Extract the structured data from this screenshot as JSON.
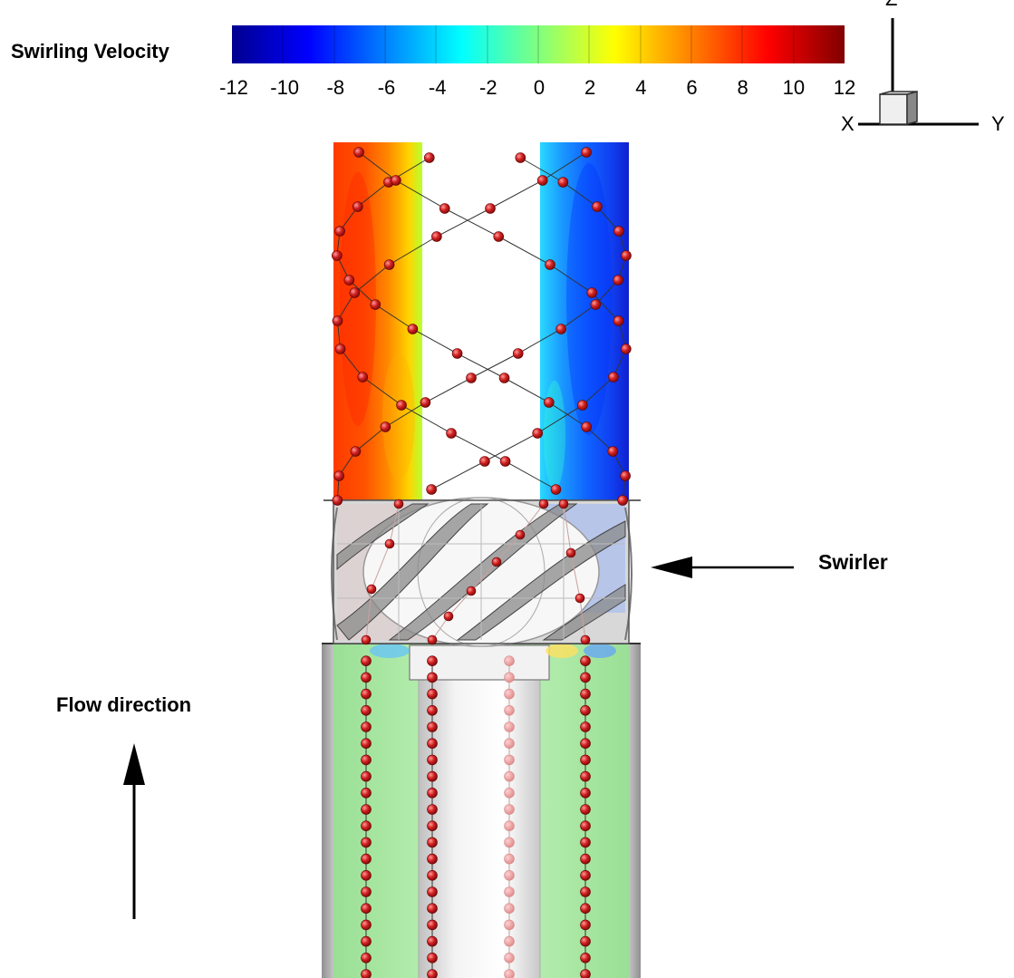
{
  "legend": {
    "title": "Swirling Velocity",
    "min": -12,
    "max": 12,
    "ticks": [
      "-12",
      "-10",
      "-8",
      "-6",
      "-4",
      "-2",
      "0",
      "2",
      "4",
      "6",
      "8",
      "10",
      "12"
    ],
    "colormap": [
      "#00008f",
      "#0000ff",
      "#0080ff",
      "#00ffff",
      "#80ff80",
      "#ffff00",
      "#ff8000",
      "#ff0000",
      "#800000"
    ]
  },
  "axes": {
    "z": "Z",
    "x": "X",
    "y": "Y"
  },
  "labels": {
    "swirler": "Swirler",
    "flow_direction": "Flow direction"
  },
  "field": {
    "left_band_colors": [
      "#ff3a00",
      "#ff5200",
      "#ff8a00",
      "#ffd400",
      "#b8ff30"
    ],
    "right_band_colors": [
      "#2ad8ff",
      "#1a98ff",
      "#1060ff",
      "#1040f0",
      "#1020d0"
    ],
    "inlet_color": "#b8f2b0",
    "particle_color": "#c81e1e"
  }
}
